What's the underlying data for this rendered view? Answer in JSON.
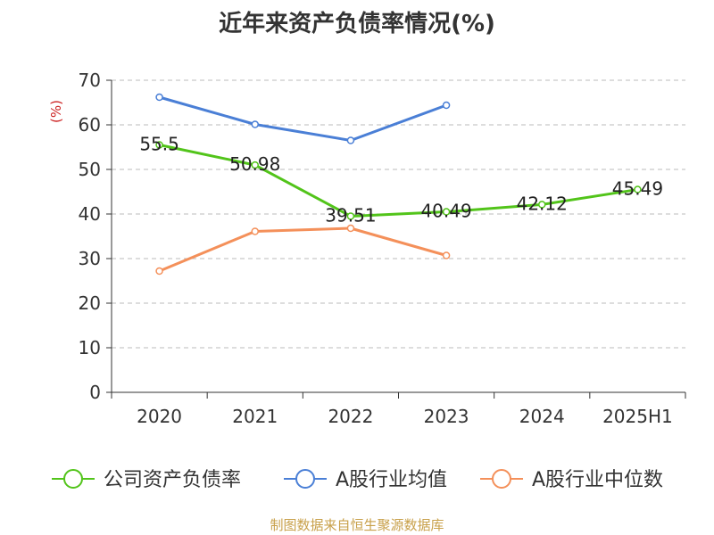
{
  "chart_data": {
    "type": "line",
    "title": "近年来资产负债率情况(%)",
    "ylabel": "(%)",
    "categories": [
      "2020",
      "2021",
      "2022",
      "2023",
      "2024",
      "2025H1"
    ],
    "ylim": [
      0,
      70
    ],
    "yticks": [
      0,
      10,
      20,
      30,
      40,
      50,
      60,
      70
    ],
    "grid": true,
    "legend_position": "bottom",
    "series": [
      {
        "name": "公司资产负债率",
        "color": "#52c41a",
        "values": [
          55.5,
          50.98,
          39.51,
          40.49,
          42.12,
          45.49
        ],
        "labels": [
          "55.5",
          "50.98",
          "39.51",
          "40.49",
          "42.12",
          "45.49"
        ]
      },
      {
        "name": "A股行业均值",
        "color": "#4a7fd6",
        "values": [
          66.2,
          60.1,
          56.5,
          64.4,
          null,
          null
        ]
      },
      {
        "name": "A股行业中位数",
        "color": "#f4905a",
        "values": [
          27.2,
          36.1,
          36.8,
          30.7,
          null,
          null
        ]
      }
    ]
  },
  "source": "制图数据来自恒生聚源数据库"
}
